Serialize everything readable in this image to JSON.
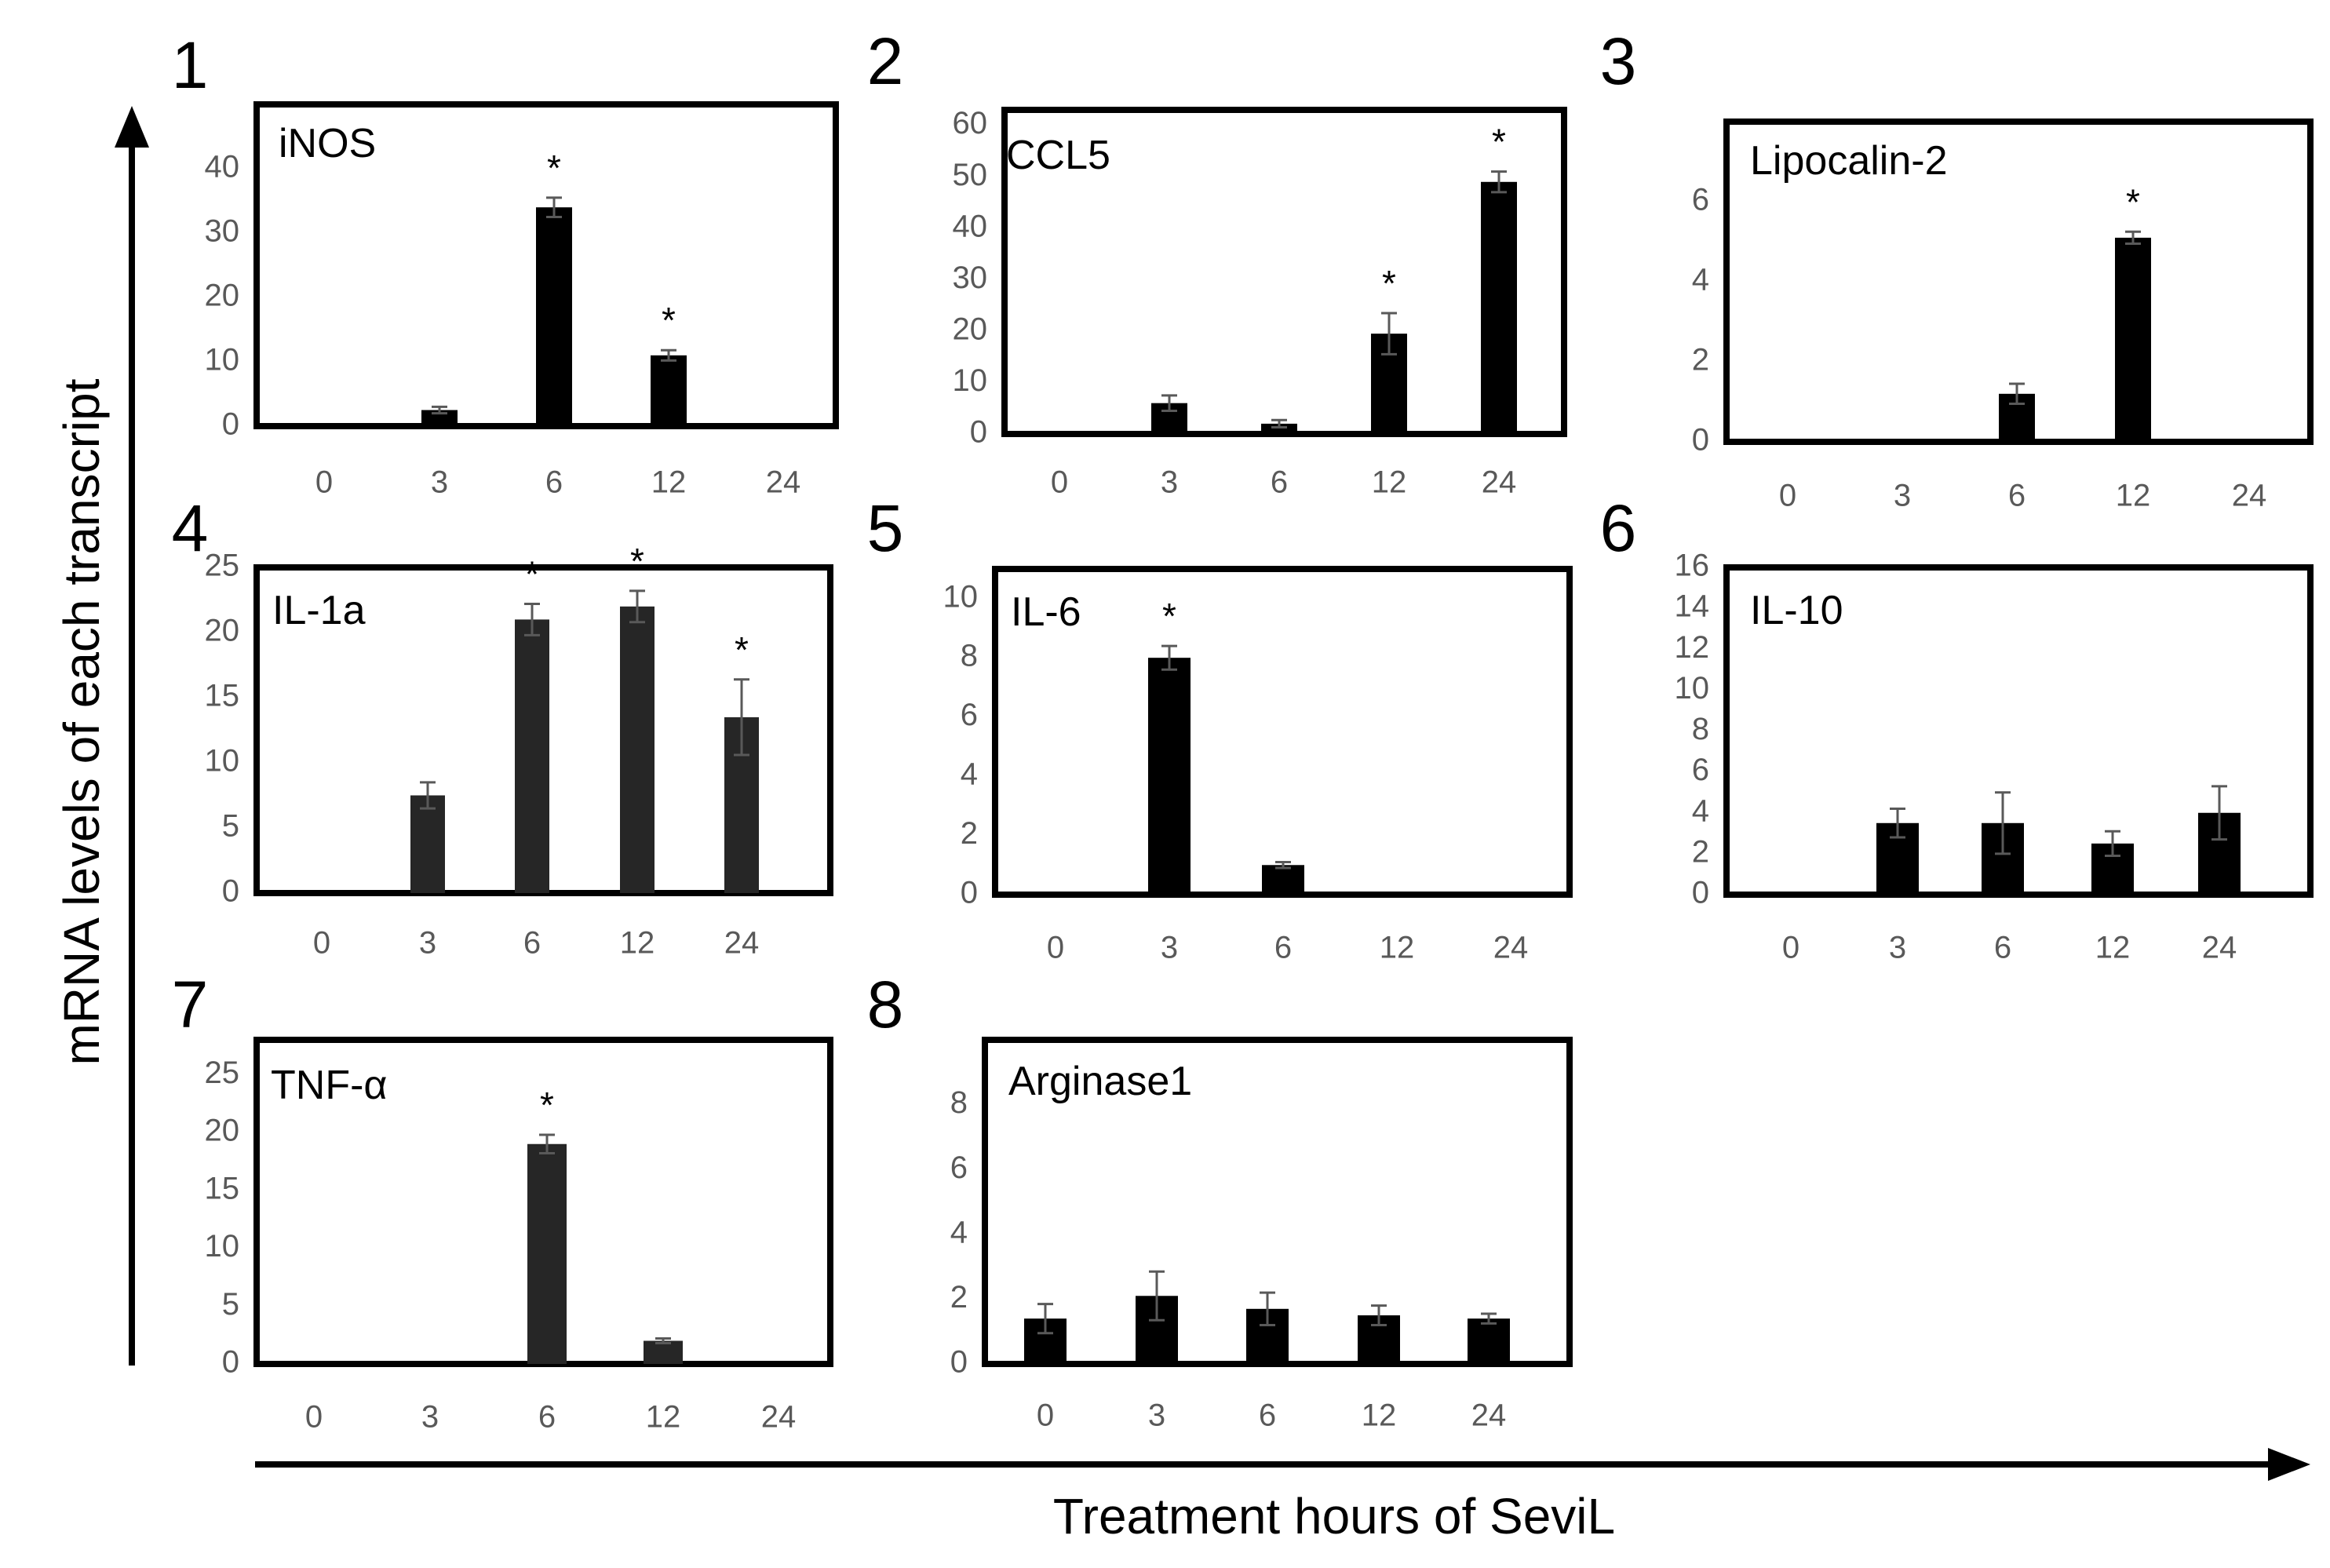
{
  "axis_labels": {
    "y": "mRNA levels of each transcript",
    "x": "Treatment hours of SeviL"
  },
  "significance_marker": "*",
  "colors": {
    "bar": "#000000",
    "bar_dark": "#262626",
    "tick_text": "#595959",
    "error": "#595959"
  },
  "chart_data": [
    {
      "type": "bar",
      "panel": "1",
      "title": "iNOS",
      "categories": [
        "0",
        "3",
        "6",
        "12",
        "24"
      ],
      "values": [
        0,
        2.5,
        34,
        11,
        0
      ],
      "errors": [
        0,
        0.5,
        1.5,
        0.8,
        0
      ],
      "significant": [
        false,
        false,
        true,
        true,
        false
      ],
      "ylim": [
        0,
        50
      ],
      "yticks": [
        0,
        10,
        20,
        30,
        40
      ]
    },
    {
      "type": "bar",
      "panel": "2",
      "title": "CCL5",
      "categories": [
        "0",
        "3",
        "6",
        "12",
        "24"
      ],
      "values": [
        0,
        6,
        2,
        19.5,
        49
      ],
      "errors": [
        0,
        1.5,
        0.7,
        4,
        2
      ],
      "significant": [
        false,
        false,
        false,
        true,
        true
      ],
      "ylim": [
        0,
        63
      ],
      "yticks": [
        0,
        10,
        20,
        30,
        40,
        50,
        60
      ]
    },
    {
      "type": "bar",
      "panel": "3",
      "title": "Lipocalin-2",
      "categories": [
        "0",
        "3",
        "6",
        "12",
        "24"
      ],
      "values": [
        0,
        0,
        1.2,
        5.1,
        0
      ],
      "errors": [
        0,
        0,
        0.25,
        0.15,
        0
      ],
      "significant": [
        false,
        false,
        false,
        true,
        false
      ],
      "ylim": [
        0,
        8
      ],
      "yticks": [
        0,
        2,
        4,
        6
      ]
    },
    {
      "type": "bar",
      "panel": "4",
      "title": "IL-1a",
      "categories": [
        "0",
        "3",
        "6",
        "12",
        "24"
      ],
      "values": [
        0,
        7.5,
        21,
        22,
        13.5
      ],
      "errors": [
        0,
        1,
        1.2,
        1.2,
        2.9
      ],
      "significant": [
        false,
        false,
        true,
        true,
        true
      ],
      "ylim": [
        0,
        25
      ],
      "yticks": [
        0,
        5,
        10,
        15,
        20,
        25
      ]
    },
    {
      "type": "bar",
      "panel": "5",
      "title": "IL-6",
      "categories": [
        "0",
        "3",
        "6",
        "12",
        "24"
      ],
      "values": [
        0,
        8,
        1,
        0,
        0
      ],
      "errors": [
        0,
        0.4,
        0.1,
        0,
        0
      ],
      "significant": [
        false,
        true,
        false,
        false,
        false
      ],
      "ylim": [
        0,
        11
      ],
      "yticks": [
        0,
        2,
        4,
        6,
        8,
        10
      ]
    },
    {
      "type": "bar",
      "panel": "6",
      "title": "IL-10",
      "categories": [
        "0",
        "3",
        "6",
        "12",
        "24"
      ],
      "values": [
        0,
        3.5,
        3.5,
        2.5,
        4
      ],
      "errors": [
        0,
        0.7,
        1.5,
        0.6,
        1.3
      ],
      "significant": [
        false,
        false,
        false,
        false,
        false
      ],
      "ylim": [
        0,
        16
      ],
      "yticks": [
        0,
        2,
        4,
        6,
        8,
        10,
        12,
        14,
        16
      ]
    },
    {
      "type": "bar",
      "panel": "7",
      "title": "TNF-α",
      "categories": [
        "0",
        "3",
        "6",
        "12",
        "24"
      ],
      "values": [
        0,
        0,
        19,
        2,
        0
      ],
      "errors": [
        0,
        0,
        0.8,
        0.2,
        0
      ],
      "significant": [
        false,
        false,
        true,
        false,
        false
      ],
      "ylim": [
        0,
        28
      ],
      "yticks": [
        0,
        5,
        10,
        15,
        20,
        25
      ]
    },
    {
      "type": "bar",
      "panel": "8",
      "title": "Arginase1",
      "categories": [
        "0",
        "3",
        "6",
        "12",
        "24"
      ],
      "values": [
        1.4,
        2.1,
        1.7,
        1.5,
        1.4
      ],
      "errors": [
        0.45,
        0.75,
        0.5,
        0.3,
        0.15
      ],
      "significant": [
        false,
        false,
        false,
        false,
        false
      ],
      "ylim": [
        0,
        10
      ],
      "yticks": [
        0,
        2,
        4,
        6,
        8
      ]
    }
  ]
}
